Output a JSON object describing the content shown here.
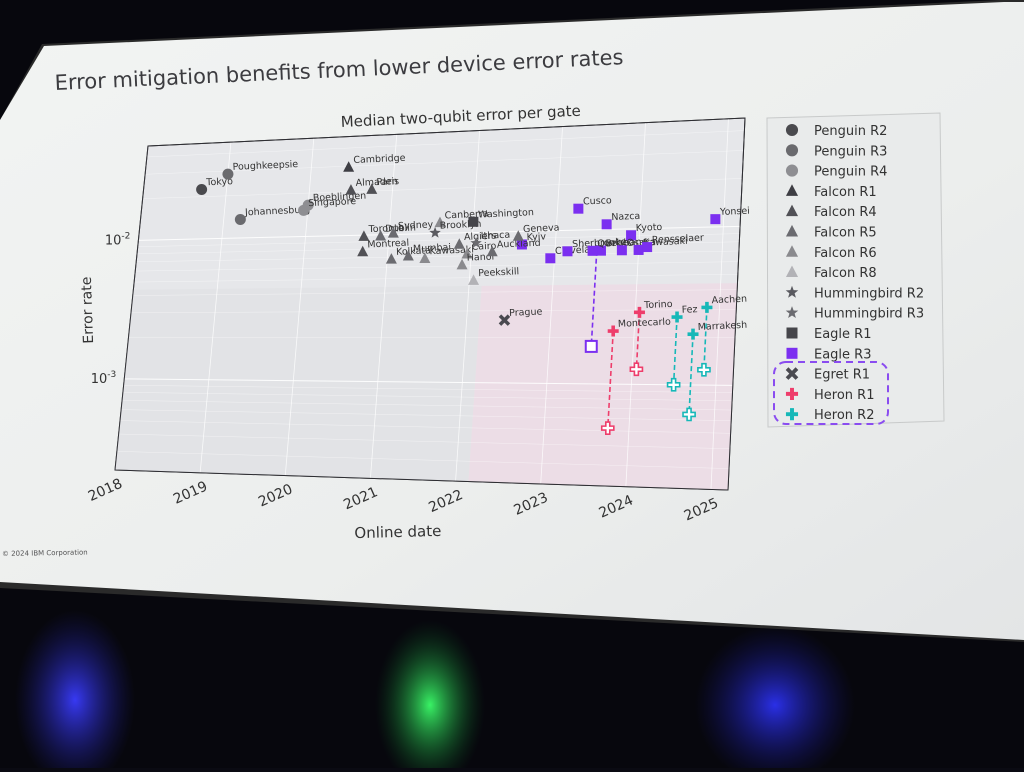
{
  "slide": {
    "title": "Error mitigation benefits from lower device error rates",
    "copyright": "© 2024 IBM Corporation"
  },
  "colors": {
    "screen": "#eef0ee",
    "plot_bg": "#e6e7ea",
    "pink_region": "#ecdde6",
    "penguin_r2": "#4a4a4e",
    "penguin_r3": "#6a6a6e",
    "penguin_r4": "#8e8e92",
    "falcon_r1": "#3e3e44",
    "falcon_r4": "#515156",
    "falcon_r5": "#6b6b70",
    "falcon_r6": "#8a8a8e",
    "falcon_r8": "#b2b2b6",
    "hummingbird": "#5a5a60",
    "eagle_r1": "#45454a",
    "eagle_r3": "#7b2ff0",
    "egret": "#4a4a50",
    "heron_r1": "#ee3d6b",
    "heron_r2": "#16b8b8",
    "dash_box": "#8a4cf0"
  },
  "chart_data": {
    "type": "scatter",
    "title": "Median two-qubit error per gate",
    "xlabel": "Online date",
    "ylabel": "Error rate",
    "y_scale": "log",
    "x_ticks": [
      "2018",
      "2019",
      "2020",
      "2021",
      "2022",
      "2023",
      "2024",
      "2025"
    ],
    "y_ticks": [
      "10^-2",
      "10^-3"
    ],
    "xlim": [
      2018.0,
      2025.2
    ],
    "ylim": [
      0.00022,
      0.048
    ],
    "legend_position": "right",
    "legend": [
      {
        "name": "Penguin R2",
        "marker": "circle",
        "color": "penguin_r2"
      },
      {
        "name": "Penguin R3",
        "marker": "circle",
        "color": "penguin_r3"
      },
      {
        "name": "Penguin R4",
        "marker": "circle",
        "color": "penguin_r4"
      },
      {
        "name": "Falcon R1",
        "marker": "triangle",
        "color": "falcon_r1"
      },
      {
        "name": "Falcon R4",
        "marker": "triangle",
        "color": "falcon_r4"
      },
      {
        "name": "Falcon R5",
        "marker": "triangle",
        "color": "falcon_r5"
      },
      {
        "name": "Falcon R6",
        "marker": "triangle",
        "color": "falcon_r6"
      },
      {
        "name": "Falcon R8",
        "marker": "triangle",
        "color": "falcon_r8"
      },
      {
        "name": "Hummingbird R2",
        "marker": "star",
        "color": "hummingbird"
      },
      {
        "name": "Hummingbird R3",
        "marker": "star",
        "color": "falcon_r5"
      },
      {
        "name": "Eagle R1",
        "marker": "square",
        "color": "eagle_r1"
      },
      {
        "name": "Eagle R3",
        "marker": "square",
        "color": "eagle_r3"
      },
      {
        "name": "Egret R1",
        "marker": "x",
        "color": "egret"
      },
      {
        "name": "Heron R1",
        "marker": "plus",
        "color": "heron_r1"
      },
      {
        "name": "Heron R2",
        "marker": "plus",
        "color": "heron_r2"
      }
    ],
    "points": [
      {
        "label": "Tokyo",
        "series": "Penguin R2",
        "x": 2018.7,
        "y": 0.0225
      },
      {
        "label": "Poughkeepsie",
        "series": "Penguin R3",
        "x": 2019.0,
        "y": 0.0285
      },
      {
        "label": "Johannesburg",
        "series": "Penguin R3",
        "x": 2019.2,
        "y": 0.0135
      },
      {
        "label": "Boeblingen",
        "series": "Penguin R4",
        "x": 2020.0,
        "y": 0.0165
      },
      {
        "label": "Singapore",
        "series": "Penguin R4",
        "x": 2019.95,
        "y": 0.0152
      },
      {
        "label": "Cambridge",
        "series": "Falcon R1",
        "x": 2020.45,
        "y": 0.0295
      },
      {
        "label": "Almaden",
        "series": "Falcon R4",
        "x": 2020.5,
        "y": 0.0205
      },
      {
        "label": "Paris",
        "series": "Falcon R4",
        "x": 2020.75,
        "y": 0.0205
      },
      {
        "label": "Toronto",
        "series": "Falcon R4",
        "x": 2020.7,
        "y": 0.0098
      },
      {
        "label": "Montreal",
        "series": "Falcon R4",
        "x": 2020.7,
        "y": 0.0077
      },
      {
        "label": "Dublin",
        "series": "Falcon R5",
        "x": 2020.9,
        "y": 0.0098
      },
      {
        "label": "Sydney",
        "series": "Falcon R5",
        "x": 2021.05,
        "y": 0.0102
      },
      {
        "label": "Kolkata",
        "series": "Falcon R5",
        "x": 2021.05,
        "y": 0.0068
      },
      {
        "label": "Mumbai",
        "series": "Falcon R5",
        "x": 2021.25,
        "y": 0.0071
      },
      {
        "label": "Kawasaki",
        "series": "Falcon R6",
        "x": 2021.45,
        "y": 0.0068
      },
      {
        "label": "Canberra",
        "series": "Falcon R6",
        "x": 2021.6,
        "y": 0.0118
      },
      {
        "label": "Brooklyn",
        "series": "Hummingbird R2",
        "x": 2021.55,
        "y": 0.0101
      },
      {
        "label": "Algiers",
        "series": "Falcon R5",
        "x": 2021.85,
        "y": 0.0084
      },
      {
        "label": "Cairo",
        "series": "Falcon R6",
        "x": 2021.95,
        "y": 0.0072
      },
      {
        "label": "Hanoi",
        "series": "Falcon R6",
        "x": 2021.9,
        "y": 0.0061
      },
      {
        "label": "Peekskill",
        "series": "Falcon R8",
        "x": 2022.05,
        "y": 0.0048
      },
      {
        "label": "Washington",
        "series": "Eagle R1",
        "x": 2022.0,
        "y": 0.0118
      },
      {
        "label": "Ithaca",
        "series": "Hummingbird R3",
        "x": 2022.05,
        "y": 0.0085
      },
      {
        "label": "Prague",
        "series": "Egret R1",
        "x": 2022.45,
        "y": 0.0026
      },
      {
        "label": "Kyiv",
        "series": "Eagle R3",
        "x": 2022.6,
        "y": 0.0082
      },
      {
        "label": "Auckland",
        "series": "Falcon R5",
        "x": 2022.25,
        "y": 0.0074
      },
      {
        "label": "Geneva",
        "series": "Falcon R5",
        "x": 2022.55,
        "y": 0.0093
      },
      {
        "label": "Cleveland",
        "series": "Eagle R3",
        "x": 2022.95,
        "y": 0.0066
      },
      {
        "label": "Sherbrooke",
        "series": "Eagle R3",
        "x": 2023.15,
        "y": 0.0073
      },
      {
        "label": "Cusco",
        "series": "Eagle R3",
        "x": 2023.25,
        "y": 0.0138
      },
      {
        "label": "Nazca",
        "series": "Eagle R3",
        "x": 2023.6,
        "y": 0.0108
      },
      {
        "label": "Brisbane",
        "series": "Eagle R3",
        "x": 2023.55,
        "y": 0.0073
      },
      {
        "label": "Quebec",
        "series": "Eagle R3",
        "x": 2023.45,
        "y": 0.0073
      },
      {
        "label": "Kyoto",
        "series": "Eagle R3",
        "x": 2023.9,
        "y": 0.0091
      },
      {
        "label": "Osaka",
        "series": "Eagle R3",
        "x": 2023.8,
        "y": 0.0073
      },
      {
        "label": "Kawasaki",
        "series": "Eagle R3",
        "x": 2024.0,
        "y": 0.0073
      },
      {
        "label": "Rensselaer",
        "series": "Eagle R3",
        "x": 2024.1,
        "y": 0.0076
      },
      {
        "label": "Yonsei",
        "series": "Eagle R3",
        "x": 2024.9,
        "y": 0.0112
      },
      {
        "label": "Montecarlo",
        "series": "Heron R1",
        "x": 2023.75,
        "y": 0.0022
      },
      {
        "label": "Torino",
        "series": "Heron R1",
        "x": 2024.05,
        "y": 0.0029
      },
      {
        "label": "Fez",
        "series": "Heron R2",
        "x": 2024.5,
        "y": 0.0027
      },
      {
        "label": "Marrakesh",
        "series": "Heron R2",
        "x": 2024.7,
        "y": 0.0021
      },
      {
        "label": "Aachen",
        "series": "Heron R2",
        "x": 2024.85,
        "y": 0.0031
      }
    ],
    "best_drops": [
      {
        "series": "Eagle R3",
        "x": 2023.5,
        "y_from": 0.0073,
        "y_to": 0.00175
      },
      {
        "series": "Heron R1",
        "x": 2023.75,
        "y_from": 0.0022,
        "y_to": 0.00052
      },
      {
        "series": "Heron R1",
        "x": 2024.05,
        "y_from": 0.0029,
        "y_to": 0.00125
      },
      {
        "series": "Heron R2",
        "x": 2024.5,
        "y_from": 0.0027,
        "y_to": 0.001
      },
      {
        "series": "Heron R2",
        "x": 2024.7,
        "y_from": 0.0021,
        "y_to": 0.00065
      },
      {
        "series": "Heron R2",
        "x": 2024.85,
        "y_from": 0.0031,
        "y_to": 0.00125
      }
    ]
  }
}
